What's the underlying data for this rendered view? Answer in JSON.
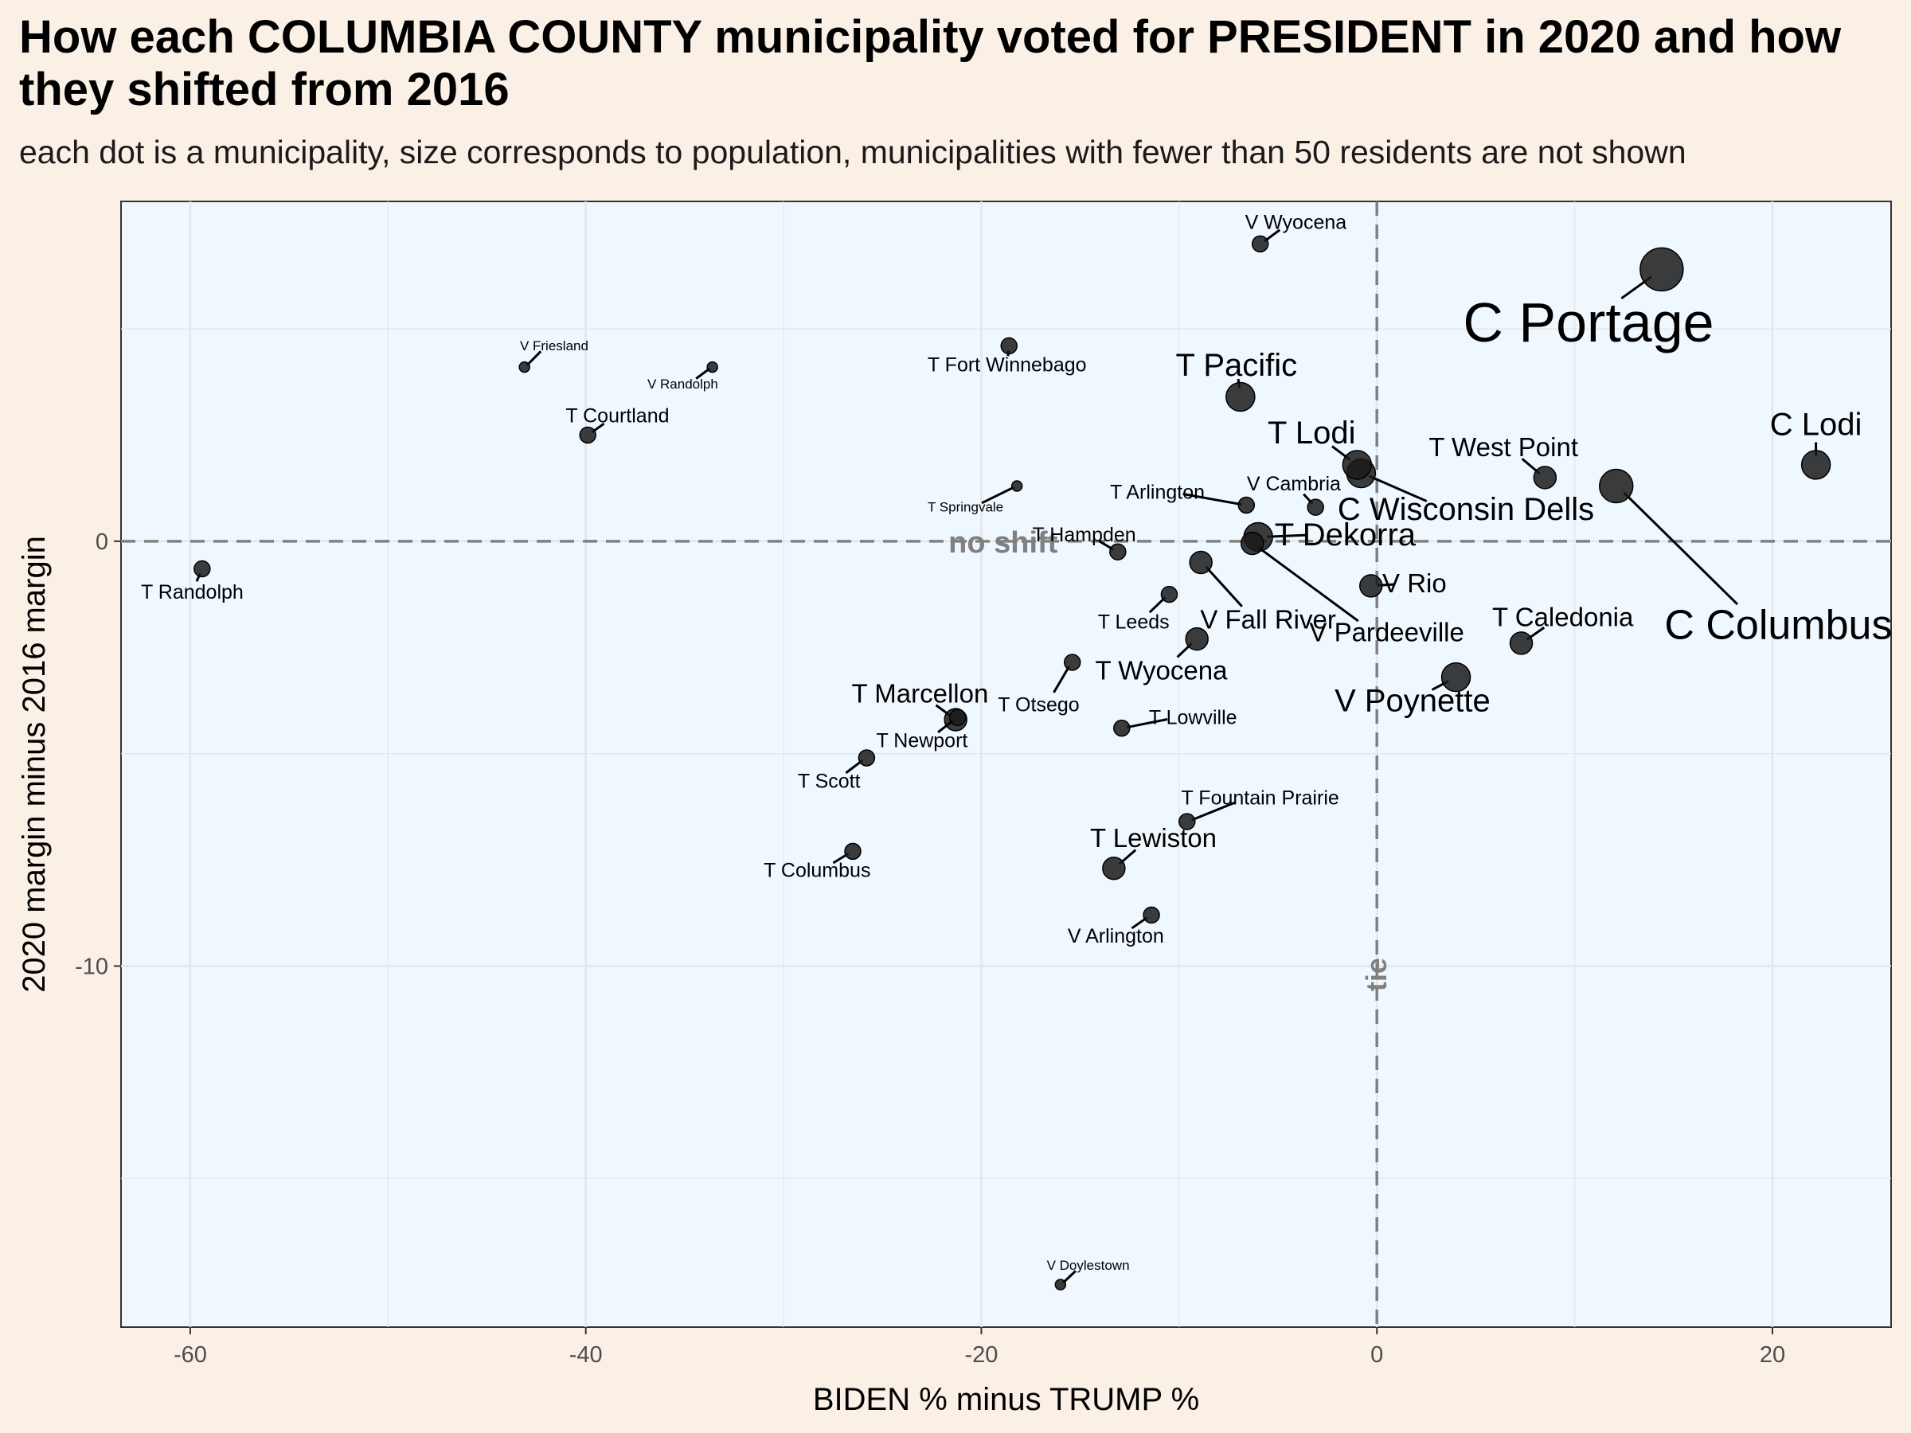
{
  "title": "How each COLUMBIA COUNTY municipality voted for PRESIDENT in 2020 and how they shifted from 2016",
  "subtitle": "each dot is a municipality, size corresponds to population, municipalities with fewer than 50 residents are not shown",
  "colors": {
    "page_background": "#faf0e6",
    "panel_background": "#f0f8ff",
    "point": "#1a1a1a",
    "reference_line": "#808080",
    "grid": "#e6e6e6"
  },
  "chart_data": {
    "type": "scatter",
    "xlabel": "BIDEN % minus TRUMP %",
    "ylabel": "2020 margin minus 2016 margin",
    "xlim": [
      -63.5,
      26
    ],
    "ylim": [
      -18.5,
      8
    ],
    "xticks": [
      -60,
      -40,
      -20,
      0,
      20
    ],
    "yticks": [
      -10,
      0
    ],
    "grid": true,
    "reference_lines": [
      {
        "axis": "y",
        "value": 0,
        "label": "no shift"
      },
      {
        "axis": "x",
        "value": 0,
        "label": "tie"
      }
    ],
    "points": [
      {
        "name": "C Portage",
        "x": 14.4,
        "y": 6.4,
        "size": 5
      },
      {
        "name": "C Columbus",
        "x": 12.1,
        "y": 1.3,
        "size": 4
      },
      {
        "name": "C Lodi",
        "x": 22.2,
        "y": 1.8,
        "size": 3
      },
      {
        "name": "C Wisconsin Dells",
        "x": -0.8,
        "y": 1.6,
        "size": 3
      },
      {
        "name": "T Lodi",
        "x": -1.0,
        "y": 1.8,
        "size": 3
      },
      {
        "name": "T Pacific",
        "x": -6.9,
        "y": 3.4,
        "size": 3
      },
      {
        "name": "T West Point",
        "x": 8.5,
        "y": 1.5,
        "size": 2
      },
      {
        "name": "T Dekorra",
        "x": -6.0,
        "y": 0.1,
        "size": 3
      },
      {
        "name": "V Fall River",
        "x": -8.9,
        "y": -0.5,
        "size": 2
      },
      {
        "name": "V Pardeeville",
        "x": -6.3,
        "y": -0.05,
        "size": 2
      },
      {
        "name": "V Poynette",
        "x": 4.0,
        "y": -3.2,
        "size": 3
      },
      {
        "name": "T Caledonia",
        "x": 7.3,
        "y": -2.4,
        "size": 2
      },
      {
        "name": "V Rio",
        "x": -0.3,
        "y": -1.05,
        "size": 2
      },
      {
        "name": "T Wyocena",
        "x": -9.1,
        "y": -2.3,
        "size": 2
      },
      {
        "name": "T Leeds",
        "x": -10.5,
        "y": -1.25,
        "size": 1
      },
      {
        "name": "T Hampden",
        "x": -13.1,
        "y": -0.25,
        "size": 1
      },
      {
        "name": "T Otsego",
        "x": -15.4,
        "y": -2.85,
        "size": 1
      },
      {
        "name": "T Lowville",
        "x": -12.9,
        "y": -4.4,
        "size": 1
      },
      {
        "name": "T Fountain Prairie",
        "x": -9.6,
        "y": -6.6,
        "size": 1
      },
      {
        "name": "T Lewiston",
        "x": -13.3,
        "y": -7.7,
        "size": 2
      },
      {
        "name": "V Arlington",
        "x": -11.4,
        "y": -8.8,
        "size": 1
      },
      {
        "name": "T Arlington",
        "x": -6.6,
        "y": 0.85,
        "size": 1
      },
      {
        "name": "V Cambria",
        "x": -3.1,
        "y": 0.8,
        "size": 1
      },
      {
        "name": "V Wyocena",
        "x": -5.9,
        "y": 7.0,
        "size": 1
      },
      {
        "name": "T Fort Winnebago",
        "x": -18.6,
        "y": 4.6,
        "size": 1
      },
      {
        "name": "T Springvale",
        "x": -18.2,
        "y": 1.3,
        "size": 0
      },
      {
        "name": "V Randolph",
        "x": -33.6,
        "y": 4.1,
        "size": 0
      },
      {
        "name": "V Friesland",
        "x": -43.1,
        "y": 4.1,
        "size": 0
      },
      {
        "name": "T Courtland",
        "x": -39.9,
        "y": 2.5,
        "size": 1
      },
      {
        "name": "T Randolph",
        "x": -59.4,
        "y": -0.65,
        "size": 1
      },
      {
        "name": "T Marcellon",
        "x": -21.3,
        "y": -4.2,
        "size": 2
      },
      {
        "name": "T Newport",
        "x": -21.2,
        "y": -4.15,
        "size": 1
      },
      {
        "name": "T Scott",
        "x": -25.8,
        "y": -5.1,
        "size": 1
      },
      {
        "name": "T Columbus",
        "x": -26.5,
        "y": -7.3,
        "size": 1
      },
      {
        "name": "V Doylestown",
        "x": -16.0,
        "y": -17.5,
        "size": 0
      }
    ]
  }
}
